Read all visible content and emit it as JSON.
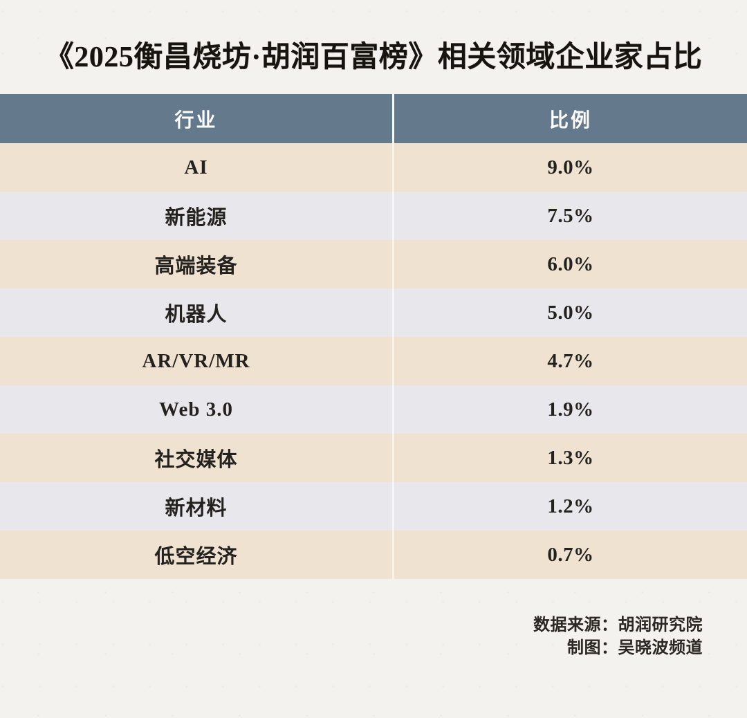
{
  "title": "《2025衡昌烧坊·胡润百富榜》相关领域企业家占比",
  "table": {
    "headers": [
      "行业",
      "比例"
    ],
    "rows": [
      {
        "industry": "AI",
        "ratio": "9.0%"
      },
      {
        "industry": "新能源",
        "ratio": "7.5%"
      },
      {
        "industry": "高端装备",
        "ratio": "6.0%"
      },
      {
        "industry": "机器人",
        "ratio": "5.0%"
      },
      {
        "industry": "AR/VR/MR",
        "ratio": "4.7%"
      },
      {
        "industry": "Web 3.0",
        "ratio": "1.9%"
      },
      {
        "industry": "社交媒体",
        "ratio": "1.3%"
      },
      {
        "industry": "新材料",
        "ratio": "1.2%"
      },
      {
        "industry": "低空经济",
        "ratio": "0.7%"
      }
    ]
  },
  "footer": {
    "source": "数据来源：胡润研究院",
    "credit": "制图：吴晓波频道"
  },
  "colors": {
    "header_bg": "#64798c",
    "header_text": "#ffffff",
    "row_warm_beige": "#f0e2d1",
    "row_cool_gray": "#e8e7ec",
    "paper_bg": "#f4f2ee",
    "body_text": "#24221e"
  },
  "chart_data": {
    "type": "table",
    "title": "《2025衡昌烧坊·胡润百富榜》相关领域企业家占比",
    "columns": [
      "行业",
      "比例"
    ],
    "categories": [
      "AI",
      "新能源",
      "高端装备",
      "机器人",
      "AR/VR/MR",
      "Web 3.0",
      "社交媒体",
      "新材料",
      "低空经济"
    ],
    "values_percent": [
      9.0,
      7.5,
      6.0,
      5.0,
      4.7,
      1.9,
      1.3,
      1.2,
      0.7
    ],
    "source": "胡润研究院",
    "credited_to": "吴晓波频道"
  }
}
